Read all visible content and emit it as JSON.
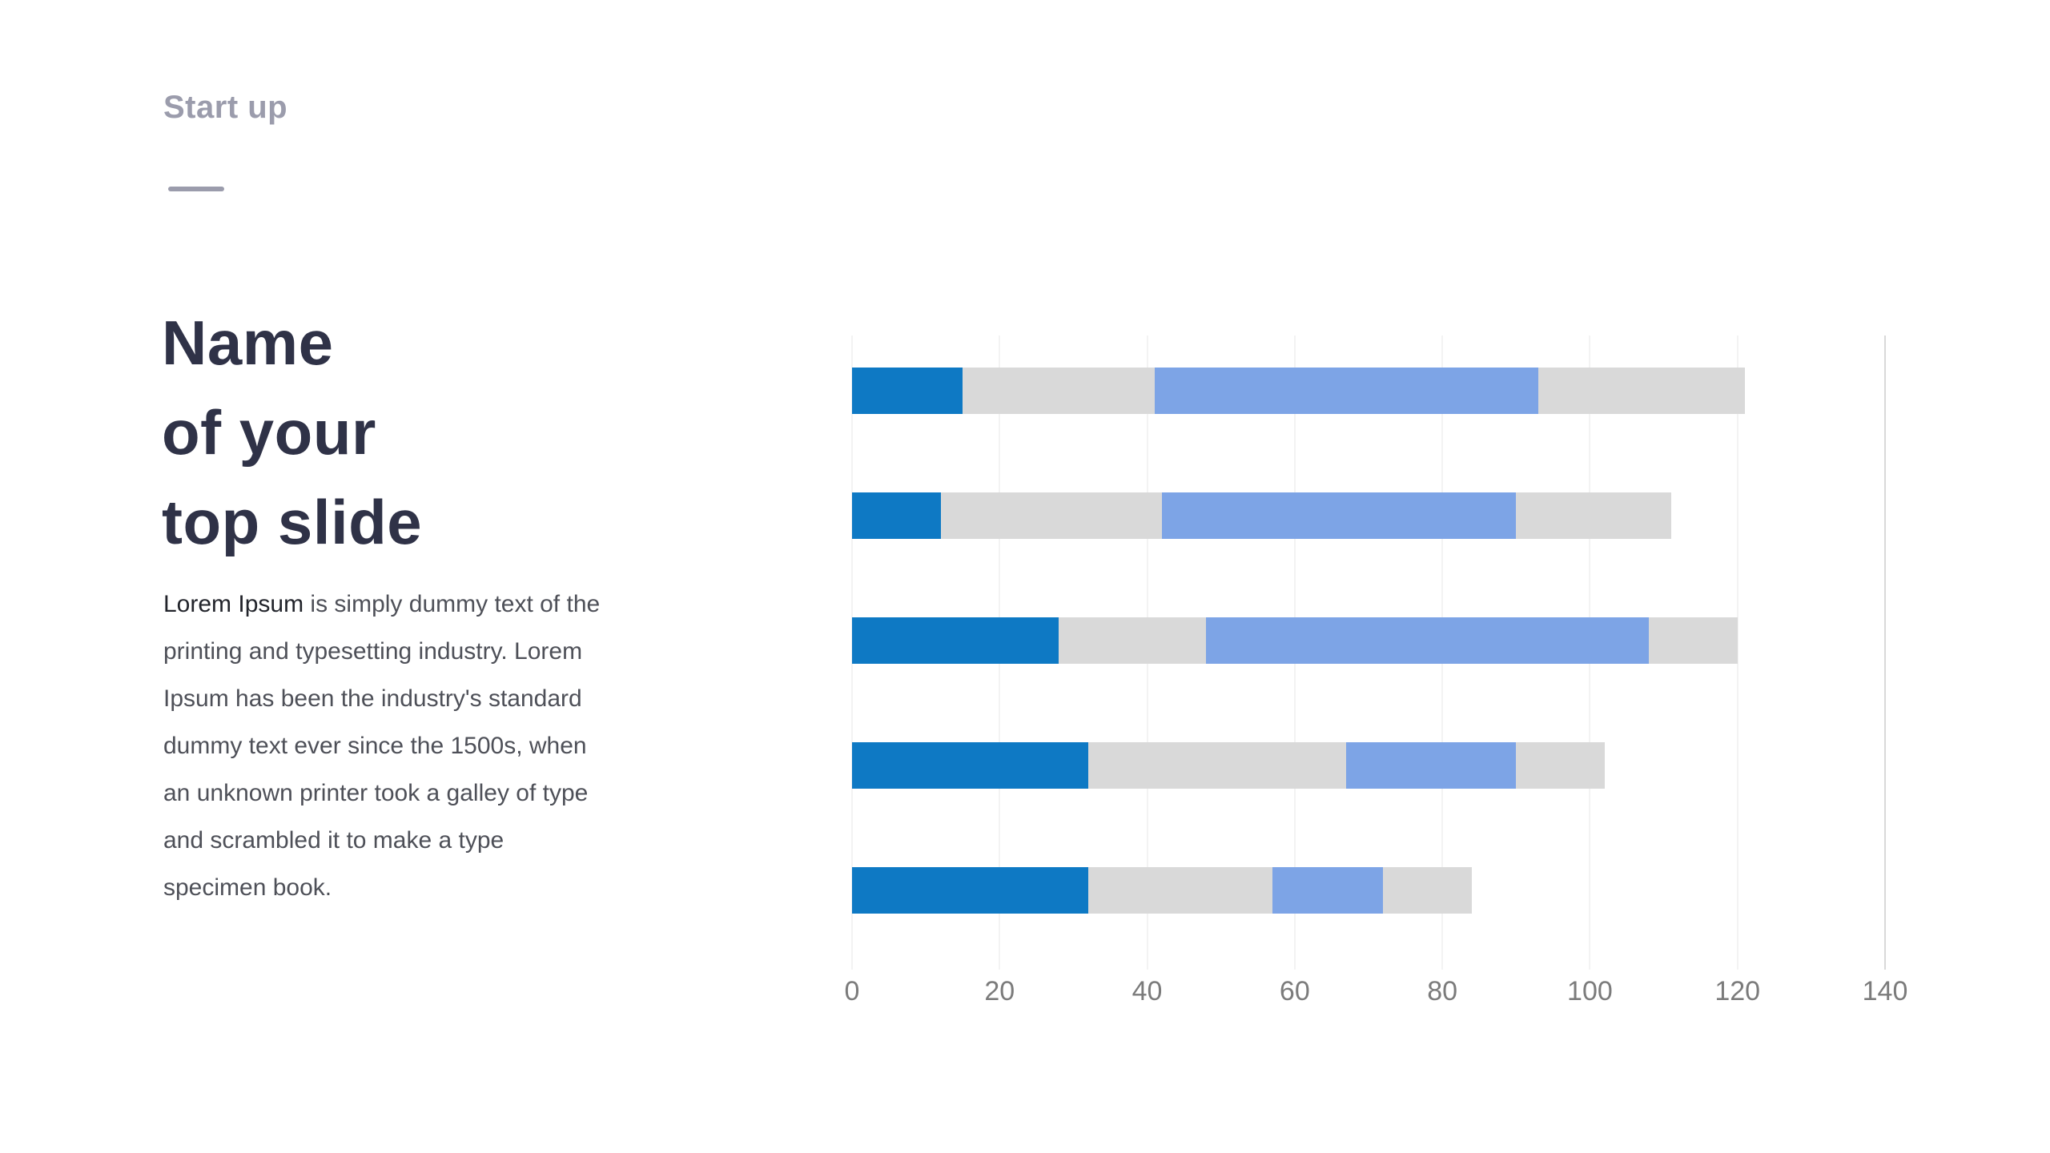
{
  "slide": {
    "kicker": "Start up",
    "title_lines": [
      "Name",
      "of your",
      "top slide"
    ],
    "body_lead": "Lorem Ipsum",
    "body_rest": " is simply dummy text of the printing and typesetting industry. Lorem Ipsum has been the industry's standard dummy text ever since the 1500s, when an unknown printer took a galley of type and scrambled it to make a type specimen book."
  },
  "colors": {
    "kicker": "#9b9cac",
    "title": "#2f3247",
    "body": "#4e5058",
    "bar_dark_blue": "#0e79c4",
    "bar_gray": "#d9d9d9",
    "bar_light_blue": "#7da4e6",
    "axis_label": "#7b7b7b",
    "gridline": "#f3f3f3",
    "plot_right_border": "#d9d9d9"
  },
  "chart_data": {
    "type": "bar",
    "orientation": "horizontal",
    "stacked": true,
    "title": "",
    "xlabel": "",
    "ylabel": "",
    "categories": [
      "",
      "",
      "",
      "",
      ""
    ],
    "series": [
      {
        "name": "blue",
        "color": "#0e79c4",
        "values": [
          15,
          12,
          28,
          32,
          32
        ]
      },
      {
        "name": "gray",
        "color": "#d9d9d9",
        "values": [
          26,
          30,
          20,
          35,
          25
        ]
      },
      {
        "name": "light-blue",
        "color": "#7da4e6",
        "values": [
          52,
          48,
          60,
          23,
          15
        ]
      },
      {
        "name": "gray-2",
        "color": "#d9d9d9",
        "values": [
          28,
          21,
          12,
          12,
          12
        ]
      }
    ],
    "totals": [
      121,
      111,
      120,
      102,
      84
    ],
    "xlim": [
      0,
      140
    ],
    "xticks": [
      0,
      20,
      40,
      60,
      80,
      100,
      120,
      140
    ],
    "grid": true,
    "legend": "none"
  }
}
